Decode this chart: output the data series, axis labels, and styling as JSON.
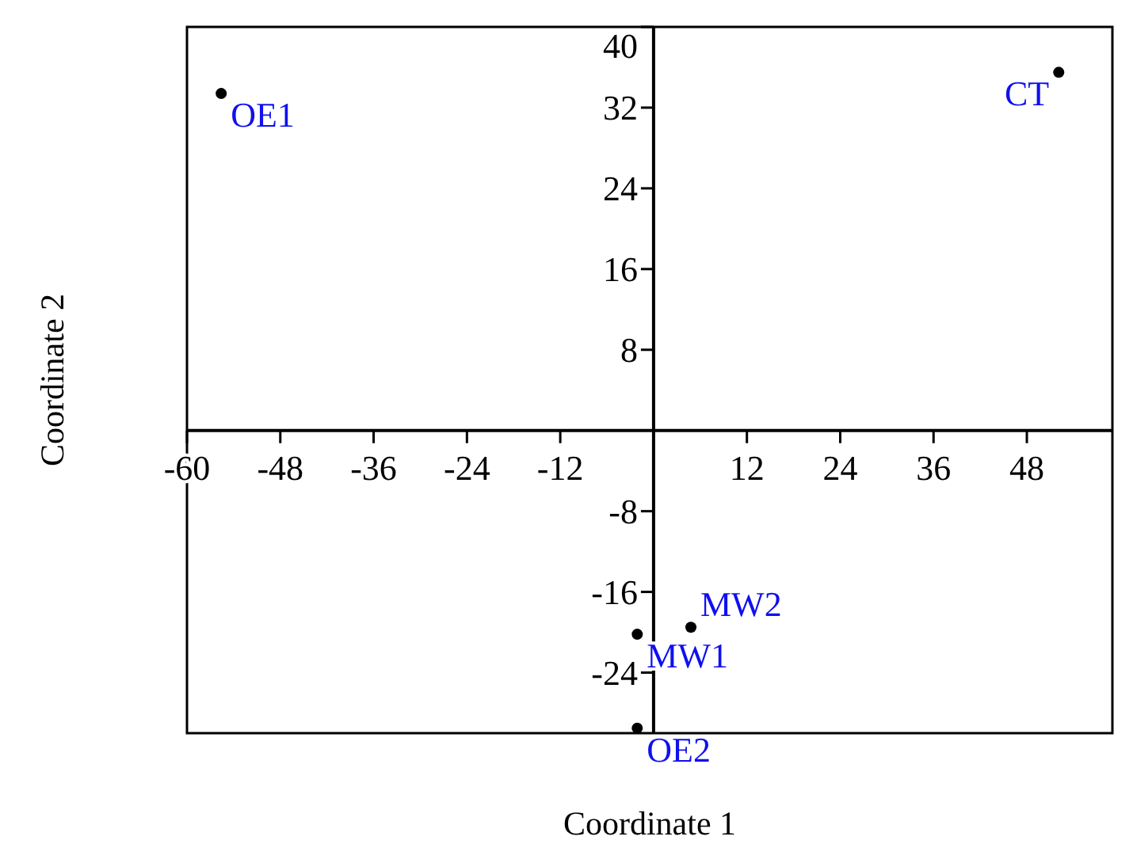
{
  "chart_data": {
    "type": "scatter",
    "xlabel": "Coordinate 1",
    "ylabel": "Coordinate 2",
    "x": [
      -55.6,
      52.1,
      -2.1,
      4.8,
      -2.1
    ],
    "series": [
      {
        "color": "#000000",
        "values": [
          33.4,
          35.5,
          -20.2,
          -19.5,
          -29.5
        ],
        "value_labels": [
          "OE1",
          "CT",
          "MW1",
          "MW2",
          "OE2"
        ]
      }
    ],
    "xlim": [
      -60,
      59
    ],
    "ylim": [
      -30,
      40
    ],
    "xticks": [
      -60,
      -48,
      -36,
      -24,
      -12,
      12,
      24,
      36,
      48
    ],
    "yticks": [
      -24,
      -16,
      -8,
      8,
      16,
      24,
      32,
      40
    ],
    "marker": "circle",
    "grid": false
  }
}
